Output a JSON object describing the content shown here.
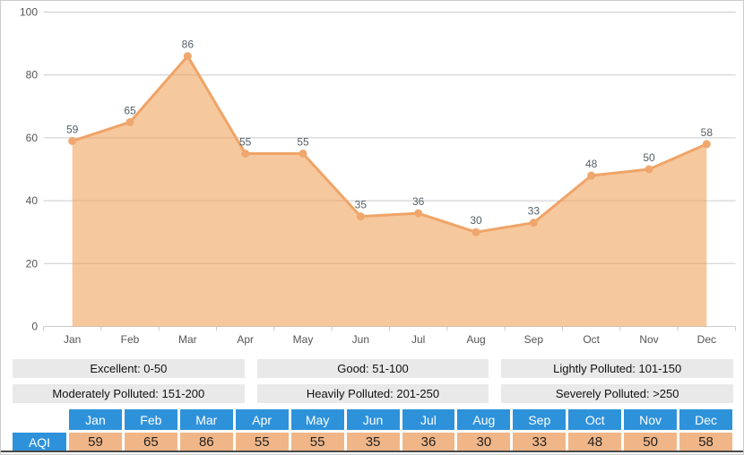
{
  "chart_data": {
    "type": "area",
    "title": "",
    "xlabel": "",
    "ylabel": "",
    "categories": [
      "Jan",
      "Feb",
      "Mar",
      "Apr",
      "May",
      "Jun",
      "Jul",
      "Aug",
      "Sep",
      "Oct",
      "Nov",
      "Dec"
    ],
    "series": [
      {
        "name": "AQI",
        "values": [
          59,
          65,
          86,
          55,
          55,
          35,
          36,
          30,
          33,
          48,
          50,
          58
        ]
      }
    ],
    "ylim": [
      0,
      100
    ],
    "yticks": [
      0,
      20,
      40,
      60,
      80,
      100
    ],
    "grid": true,
    "point_labels": true,
    "legend_position": "none"
  },
  "legend": {
    "items": [
      {
        "label": "Excellent: 0-50"
      },
      {
        "label": "Good: 51-100"
      },
      {
        "label": "Lightly Polluted: 101-150"
      },
      {
        "label": "Moderately Polluted: 151-200"
      },
      {
        "label": "Heavily Polluted: 201-250"
      },
      {
        "label": "Severely Polluted: >250"
      }
    ]
  },
  "table": {
    "row_label": "AQI",
    "months": [
      "Jan",
      "Feb",
      "Mar",
      "Apr",
      "May",
      "Jun",
      "Jul",
      "Aug",
      "Sep",
      "Oct",
      "Nov",
      "Dec"
    ],
    "values": [
      "59",
      "65",
      "86",
      "55",
      "55",
      "35",
      "36",
      "30",
      "33",
      "48",
      "50",
      "58"
    ]
  },
  "colors": {
    "area_fill": "rgba(238,154,77,0.55)",
    "line": "#efa468",
    "marker": "#f0a76e",
    "grid_line": "#cccccc",
    "axis_line": "#cccccc",
    "axis_text": "#555555",
    "value_label": "#556066",
    "legend_bg": "#e9e9e9",
    "table_header_bg": "#2e92da",
    "table_header_text": "#ffffff",
    "table_value_bg": "#f0b688",
    "table_value_text": "#222222",
    "border": "#cccccc",
    "bottom_bar": "#4a4a4a"
  }
}
